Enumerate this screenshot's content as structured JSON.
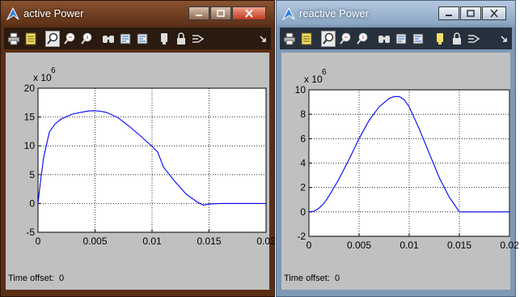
{
  "windows": [
    {
      "title": "active Power",
      "time_offset_label": "Time offset:",
      "time_offset_value": "0",
      "exponent": "x 10",
      "exponent_power": "6",
      "caption_buttons": [
        "minimize-button",
        "maximize-button",
        "close-button"
      ],
      "toolbar_icons": [
        "print-icon",
        "parameters-icon",
        "zoom-icon",
        "zoom-x-icon",
        "zoom-y-icon",
        "autoscale-icon",
        "save-axes-icon",
        "restore-axes-icon",
        "floating-scope-icon",
        "lock-icon",
        "signal-selection-icon",
        "toolbar-menu-arrow-icon"
      ],
      "colors": {
        "frame": "#5a2f16",
        "plot": "#c0c0c0",
        "axes_bg": "#ffffff",
        "line": "#0000ff"
      },
      "chart_data": {
        "type": "line",
        "title": "",
        "xlabel": "",
        "ylabel": "",
        "xlim": [
          0,
          0.02
        ],
        "ylim": [
          -5,
          20
        ],
        "x_ticks": [
          0,
          0.005,
          0.01,
          0.015,
          0.02
        ],
        "x_tick_labels": [
          "0",
          "0.005",
          "0.01",
          "0.015",
          "0.02"
        ],
        "y_ticks": [
          -5,
          0,
          5,
          10,
          15,
          20
        ],
        "y_tick_labels": [
          "-5",
          "0",
          "5",
          "10",
          "15",
          "20"
        ],
        "grid": true,
        "series": [
          {
            "x": [
              0,
              0.0002,
              0.0005,
              0.001,
              0.0015,
              0.002,
              0.003,
              0.004,
              0.0045,
              0.005,
              0.0055,
              0.006,
              0.007,
              0.008,
              0.009,
              0.01,
              0.0105,
              0.011,
              0.012,
              0.013,
              0.014,
              0.0145,
              0.015,
              0.016,
              0.018,
              0.02
            ],
            "values": [
              0,
              3.5,
              8,
              12.4,
              13.8,
              14.6,
              15.5,
              15.9,
              16.05,
              16.1,
              16.0,
              15.8,
              14.9,
              13.4,
              11.7,
              9.9,
              8.9,
              6.3,
              3.8,
              1.6,
              0.2,
              -0.3,
              -0.1,
              0,
              0,
              0
            ]
          }
        ]
      }
    },
    {
      "title": "reactive Power",
      "time_offset_label": "Time offset:",
      "time_offset_value": "0",
      "exponent": "x 10",
      "exponent_power": "6",
      "caption_buttons": [
        "minimize-button",
        "maximize-button",
        "close-button"
      ],
      "toolbar_icons": [
        "print-icon",
        "parameters-icon",
        "zoom-icon",
        "zoom-x-icon",
        "zoom-y-icon",
        "autoscale-icon",
        "save-axes-icon",
        "restore-axes-icon",
        "floating-scope-icon",
        "lock-icon",
        "signal-selection-icon",
        "toolbar-menu-arrow-icon"
      ],
      "colors": {
        "frame": "#7e98b6",
        "plot": "#c0c0c0",
        "axes_bg": "#ffffff",
        "line": "#0000ff"
      },
      "chart_data": {
        "type": "line",
        "title": "",
        "xlabel": "",
        "ylabel": "",
        "xlim": [
          0,
          0.02
        ],
        "ylim": [
          -2,
          10
        ],
        "x_ticks": [
          0,
          0.005,
          0.01,
          0.015,
          0.02
        ],
        "x_tick_labels": [
          "0",
          "0.005",
          "0.01",
          "0.015",
          "0.02"
        ],
        "y_ticks": [
          -2,
          0,
          2,
          4,
          6,
          8,
          10
        ],
        "y_tick_labels": [
          "-2",
          "0",
          "2",
          "4",
          "6",
          "8",
          "10"
        ],
        "grid": true,
        "series": [
          {
            "x": [
              0,
              0.0005,
              0.001,
              0.0015,
              0.002,
              0.003,
              0.004,
              0.005,
              0.006,
              0.007,
              0.008,
              0.0085,
              0.009,
              0.0095,
              0.01,
              0.0105,
              0.011,
              0.012,
              0.013,
              0.014,
              0.015,
              0.016,
              0.018,
              0.02
            ],
            "values": [
              0,
              0.05,
              0.3,
              0.7,
              1.3,
              2.7,
              4.3,
              6.0,
              7.5,
              8.6,
              9.3,
              9.45,
              9.45,
              9.2,
              8.6,
              7.7,
              6.8,
              4.8,
              2.8,
              1.2,
              0,
              0,
              0,
              0
            ]
          }
        ]
      }
    }
  ]
}
